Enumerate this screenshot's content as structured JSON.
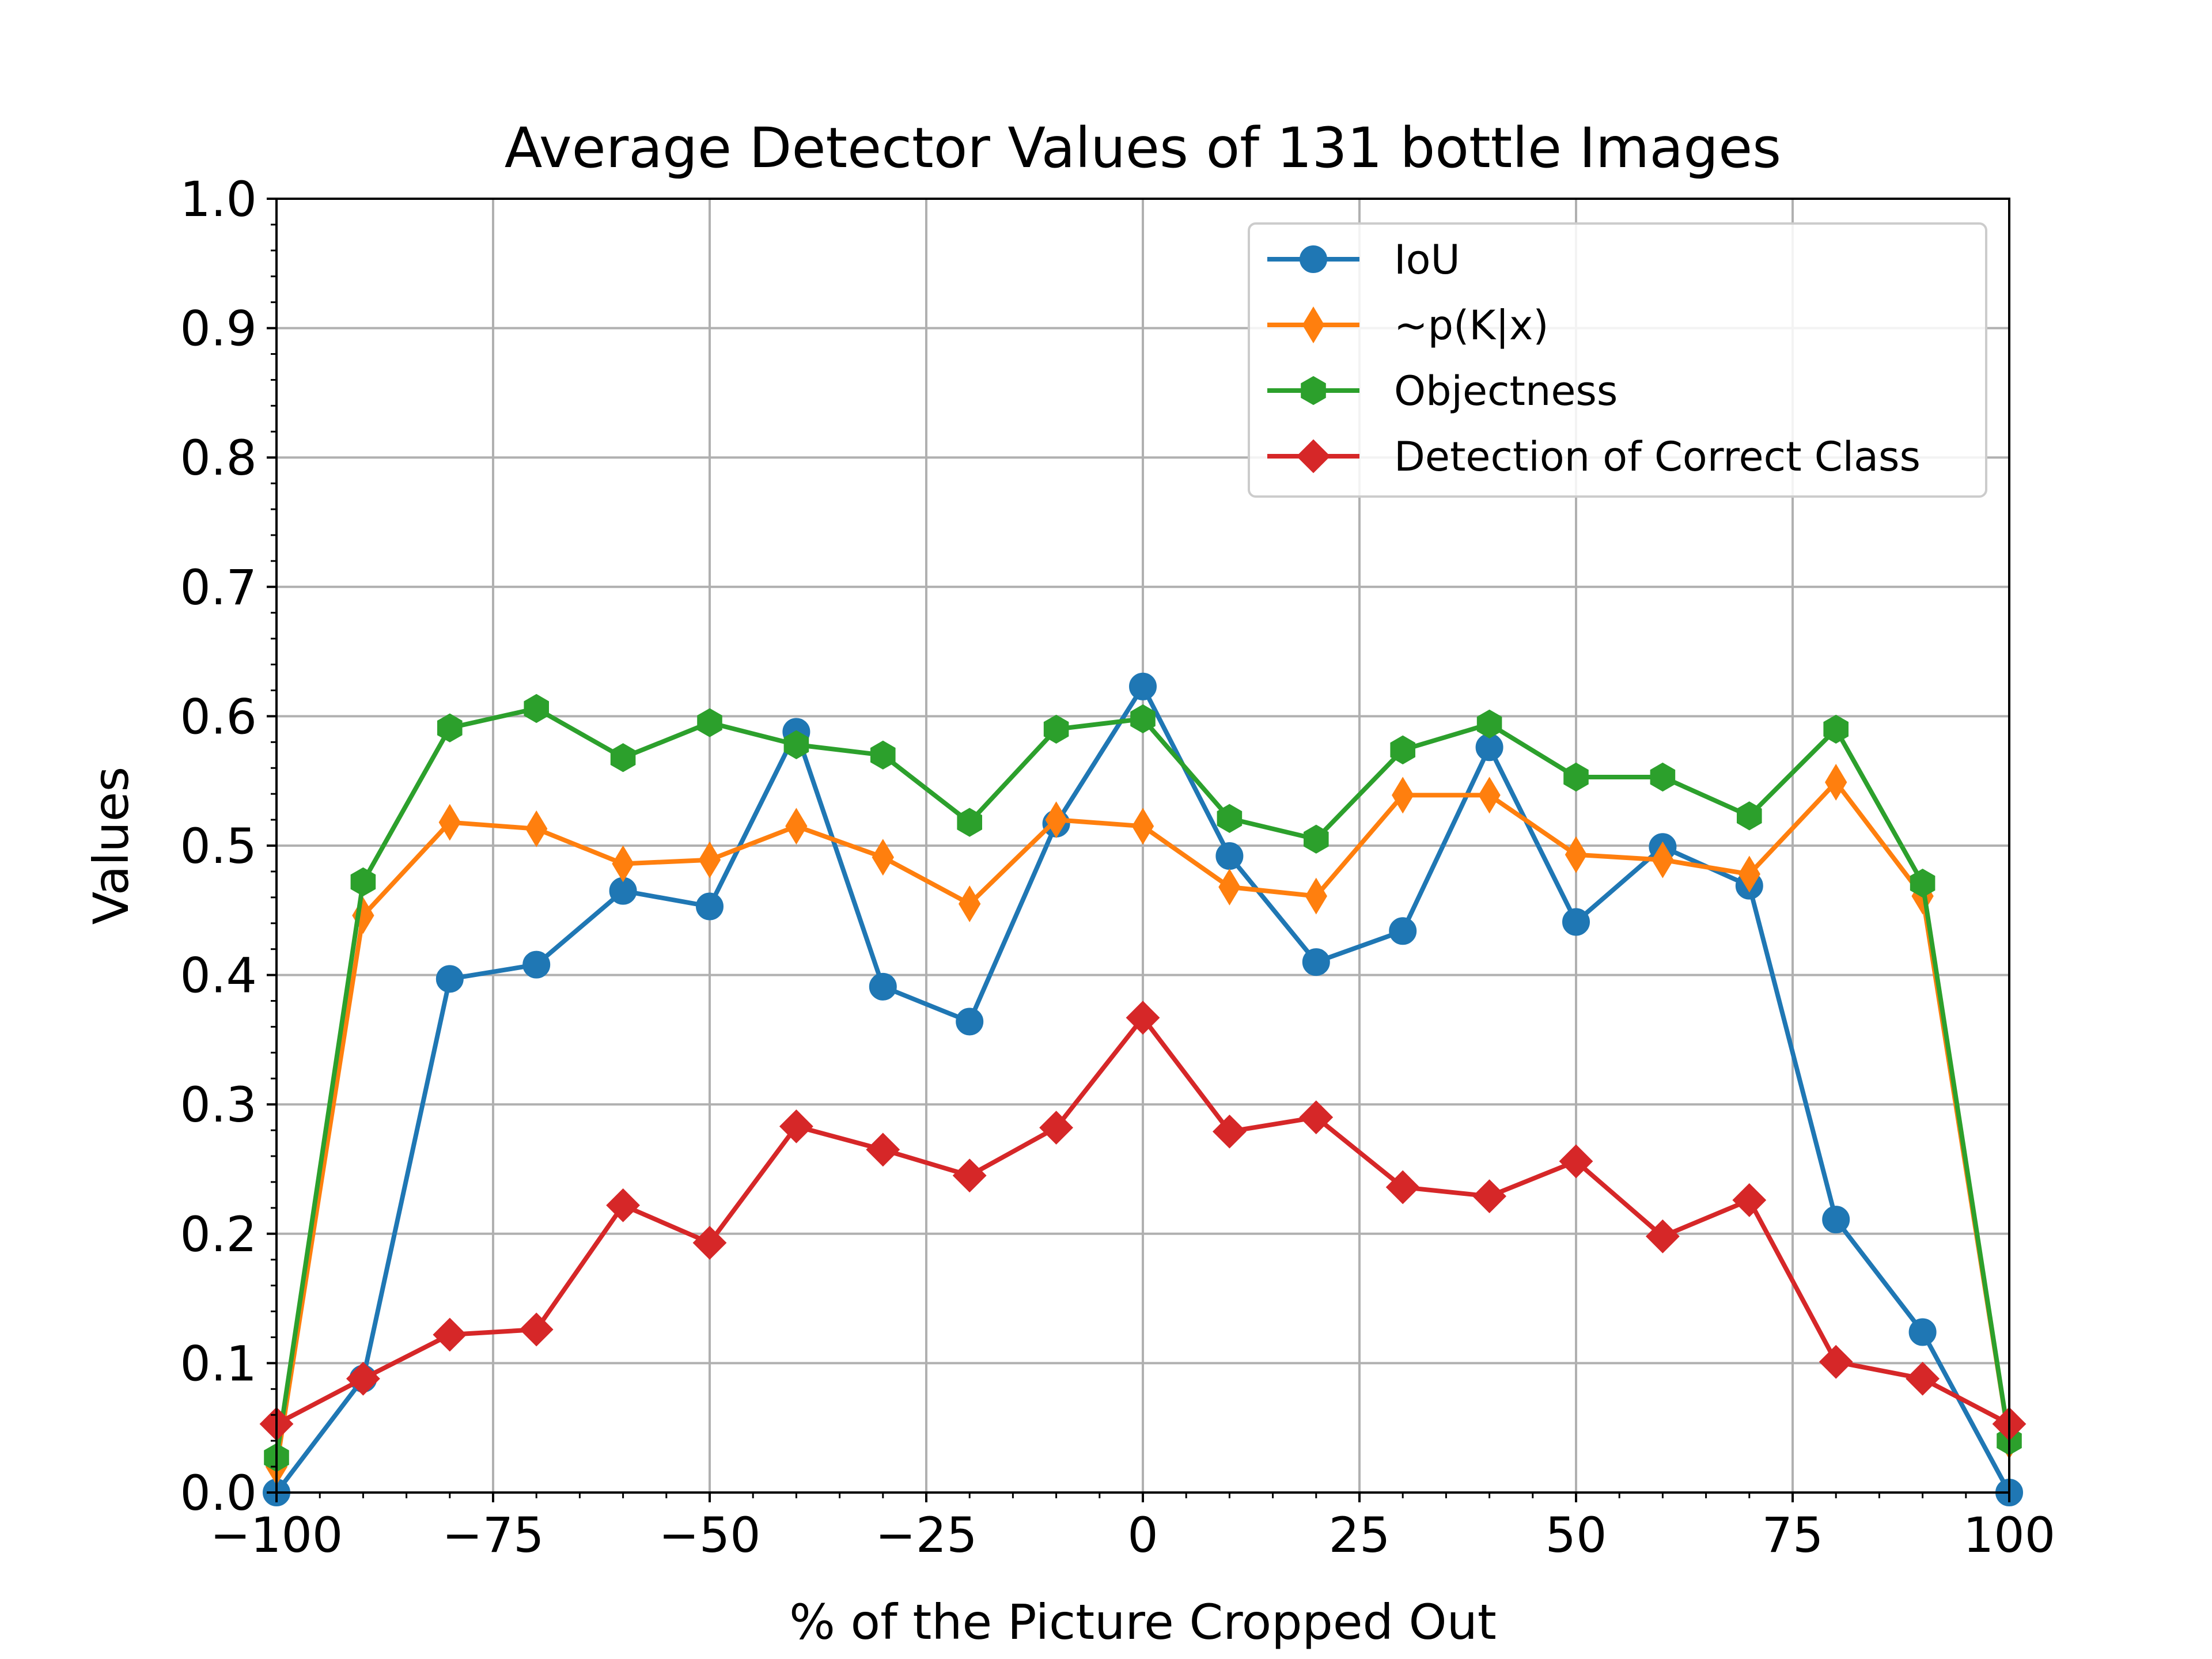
{
  "chart_data": {
    "type": "line",
    "title": "Average Detector Values of 131 bottle Images",
    "xlabel": "% of the Picture Cropped Out",
    "ylabel": "Values",
    "xlim": [
      -100,
      100
    ],
    "ylim": [
      0,
      1
    ],
    "grid": true,
    "legend_position": "top-right",
    "x": [
      -100,
      -90,
      -80,
      -70,
      -60,
      -50,
      -40,
      -30,
      -20,
      -10,
      0,
      10,
      20,
      30,
      40,
      50,
      60,
      70,
      80,
      90,
      100
    ],
    "x_ticks": [
      -100,
      -75,
      -50,
      -25,
      0,
      25,
      50,
      75,
      100
    ],
    "x_tick_labels": [
      "−100",
      "−75",
      "−50",
      "−25",
      "0",
      "25",
      "50",
      "75",
      "100"
    ],
    "y_ticks": [
      0,
      0.1,
      0.2,
      0.3,
      0.4,
      0.5,
      0.6,
      0.7,
      0.8,
      0.9,
      1.0
    ],
    "y_tick_labels": [
      "0.0",
      "0.1",
      "0.2",
      "0.3",
      "0.4",
      "0.5",
      "0.6",
      "0.7",
      "0.8",
      "0.9",
      "1.0"
    ],
    "series": [
      {
        "name": "IoU",
        "color": "#1f77b4",
        "marker": "circle",
        "values": [
          0.0,
          0.088,
          0.397,
          0.408,
          0.465,
          0.453,
          0.588,
          0.391,
          0.364,
          0.517,
          0.623,
          0.492,
          0.41,
          0.434,
          0.576,
          0.441,
          0.499,
          0.469,
          0.211,
          0.124,
          0.0
        ]
      },
      {
        "name": "~p(K|x)",
        "color": "#ff7f0e",
        "marker": "thin-diamond",
        "values": [
          0.02,
          0.446,
          0.518,
          0.513,
          0.486,
          0.489,
          0.515,
          0.491,
          0.455,
          0.52,
          0.515,
          0.468,
          0.461,
          0.539,
          0.539,
          0.493,
          0.489,
          0.478,
          0.549,
          0.461,
          0.04
        ]
      },
      {
        "name": "Objectness",
        "color": "#2ca02c",
        "marker": "hexagon",
        "values": [
          0.027,
          0.472,
          0.591,
          0.606,
          0.568,
          0.595,
          0.578,
          0.57,
          0.518,
          0.59,
          0.598,
          0.521,
          0.505,
          0.574,
          0.594,
          0.553,
          0.553,
          0.523,
          0.59,
          0.471,
          0.04
        ]
      },
      {
        "name": "Detection of Correct Class",
        "color": "#d62728",
        "marker": "diamond",
        "values": [
          0.053,
          0.088,
          0.122,
          0.126,
          0.222,
          0.193,
          0.283,
          0.265,
          0.245,
          0.282,
          0.367,
          0.279,
          0.29,
          0.236,
          0.229,
          0.256,
          0.198,
          0.226,
          0.101,
          0.088,
          0.053
        ]
      }
    ]
  }
}
